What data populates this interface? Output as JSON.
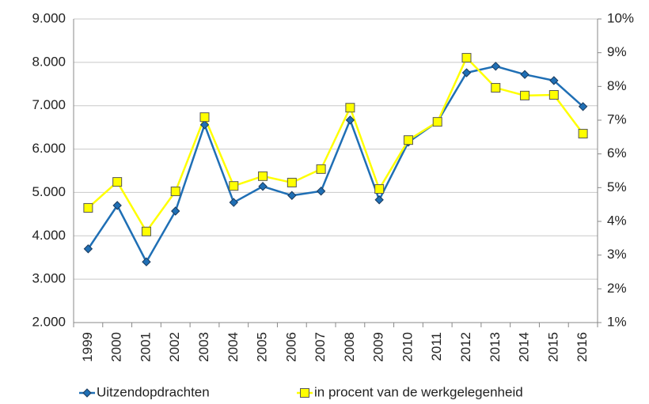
{
  "chart_data": {
    "type": "line",
    "categories": [
      "1999",
      "2000",
      "2001",
      "2002",
      "2003",
      "2004",
      "2005",
      "2006",
      "2007",
      "2008",
      "2009",
      "2010",
      "2011",
      "2012",
      "2013",
      "2014",
      "2015",
      "2016"
    ],
    "series": [
      {
        "name": "Uitzendopdrachten",
        "color": "#1f6fb5",
        "marker": "diamond",
        "values": [
          3700,
          4700,
          3400,
          4570,
          6560,
          4770,
          5140,
          4930,
          5030,
          6670,
          4830,
          6160,
          6630,
          7760,
          7910,
          7720,
          7580,
          6980
        ]
      },
      {
        "name": "in procent van de werkgelegenheid",
        "color": "#ffff00",
        "marker": "square",
        "axis": "y2",
        "values": [
          4.4,
          5.17,
          3.7,
          4.89,
          7.09,
          5.05,
          5.34,
          5.15,
          5.55,
          7.37,
          4.96,
          6.41,
          6.95,
          8.85,
          7.96,
          7.73,
          7.75,
          6.6
        ]
      }
    ],
    "ylim": [
      2000,
      9000
    ],
    "yticks": [
      {
        "value": 2000,
        "label": "2.000"
      },
      {
        "value": 3000,
        "label": "3.000"
      },
      {
        "value": 4000,
        "label": "4.000"
      },
      {
        "value": 5000,
        "label": "5.000"
      },
      {
        "value": 6000,
        "label": "6.000"
      },
      {
        "value": 7000,
        "label": "7.000"
      },
      {
        "value": 8000,
        "label": "8.000"
      },
      {
        "value": 9000,
        "label": "9.000"
      }
    ],
    "y2lim": [
      1,
      10
    ],
    "y2ticks": [
      {
        "value": 1,
        "label": "1%"
      },
      {
        "value": 2,
        "label": "2%"
      },
      {
        "value": 3,
        "label": "3%"
      },
      {
        "value": 4,
        "label": "4%"
      },
      {
        "value": 5,
        "label": "5%"
      },
      {
        "value": 6,
        "label": "6%"
      },
      {
        "value": 7,
        "label": "7%"
      },
      {
        "value": 8,
        "label": "8%"
      },
      {
        "value": 9,
        "label": "9%"
      },
      {
        "value": 10,
        "label": "10%"
      }
    ],
    "grid": true,
    "legend": "bottom"
  }
}
